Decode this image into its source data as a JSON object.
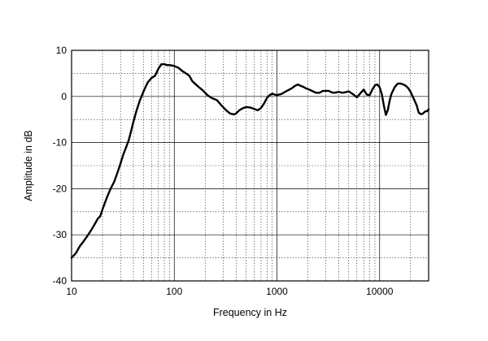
{
  "chart_data": {
    "type": "line",
    "xlabel": "Frequency  in Hz",
    "ylabel": "Amplitude in dB",
    "x_scale": "log",
    "xlim": [
      10,
      30000
    ],
    "ylim": [
      -40,
      10
    ],
    "x_ticks": [
      10,
      100,
      1000,
      10000
    ],
    "x_tick_labels": [
      "10",
      "100",
      "1000",
      "10000"
    ],
    "y_ticks": [
      10,
      0,
      -10,
      -20,
      -30,
      -40
    ],
    "y_tick_labels": [
      "10",
      "0",
      "-10",
      "-20",
      "-30",
      "-40"
    ],
    "grid": true,
    "line_color": "#000000",
    "series": [
      {
        "x": [
          10,
          11,
          12,
          13,
          14,
          15,
          16,
          17,
          18,
          19,
          20,
          22,
          24,
          26,
          28,
          30,
          32,
          34,
          36,
          38,
          40,
          43,
          46,
          50,
          55,
          60,
          65,
          70,
          75,
          80,
          85,
          90,
          95,
          100,
          110,
          120,
          130,
          140,
          150,
          170,
          190,
          210,
          230,
          260,
          290,
          320,
          350,
          380,
          400,
          430,
          460,
          500,
          550,
          600,
          650,
          700,
          750,
          800,
          850,
          900,
          950,
          1000,
          1100,
          1200,
          1300,
          1400,
          1500,
          1600,
          1700,
          1800,
          1900,
          2000,
          2200,
          2400,
          2600,
          2800,
          3000,
          3200,
          3400,
          3600,
          3800,
          4000,
          4300,
          4600,
          5000,
          5500,
          6000,
          6500,
          7000,
          7500,
          8000,
          8500,
          9000,
          9500,
          10000,
          10500,
          11000,
          11500,
          12000,
          12500,
          13000,
          14000,
          15000,
          16000,
          17000,
          18000,
          19000,
          20000,
          21000,
          22000,
          23000,
          24000,
          25000,
          26000,
          27000,
          28000,
          29000,
          30000
        ],
        "y": [
          -35,
          -34,
          -32.5,
          -31.5,
          -30.5,
          -29.5,
          -28.5,
          -27.5,
          -26.5,
          -26,
          -24.5,
          -22,
          -20,
          -18.5,
          -16.5,
          -14.5,
          -12.5,
          -11,
          -9.5,
          -7.5,
          -5.5,
          -3,
          -1,
          1,
          3,
          4,
          4.5,
          6,
          7,
          7,
          6.8,
          6.8,
          6.7,
          6.6,
          6.2,
          5.5,
          5,
          4.5,
          3.3,
          2.2,
          1.3,
          0.3,
          -0.3,
          -0.8,
          -2,
          -3,
          -3.7,
          -3.9,
          -3.7,
          -3,
          -2.6,
          -2.3,
          -2.4,
          -2.7,
          -3,
          -2.5,
          -1.5,
          -0.3,
          0.3,
          0.6,
          0.4,
          0.3,
          0.5,
          1,
          1.4,
          1.8,
          2.3,
          2.6,
          2.3,
          2.1,
          1.8,
          1.6,
          1.2,
          0.8,
          0.8,
          1.2,
          1.2,
          1.2,
          0.9,
          0.8,
          0.9,
          1,
          0.8,
          0.9,
          1.1,
          0.5,
          -0.2,
          0.7,
          1.5,
          0.4,
          0.3,
          1.5,
          2.4,
          2.6,
          2,
          0.5,
          -2,
          -4,
          -3,
          -1,
          0.5,
          2,
          2.8,
          2.8,
          2.6,
          2.3,
          1.8,
          1,
          0,
          -1,
          -2,
          -3.5,
          -3.8,
          -3.8,
          -3.5,
          -3.2,
          -3.2,
          -2.8
        ]
      }
    ]
  }
}
